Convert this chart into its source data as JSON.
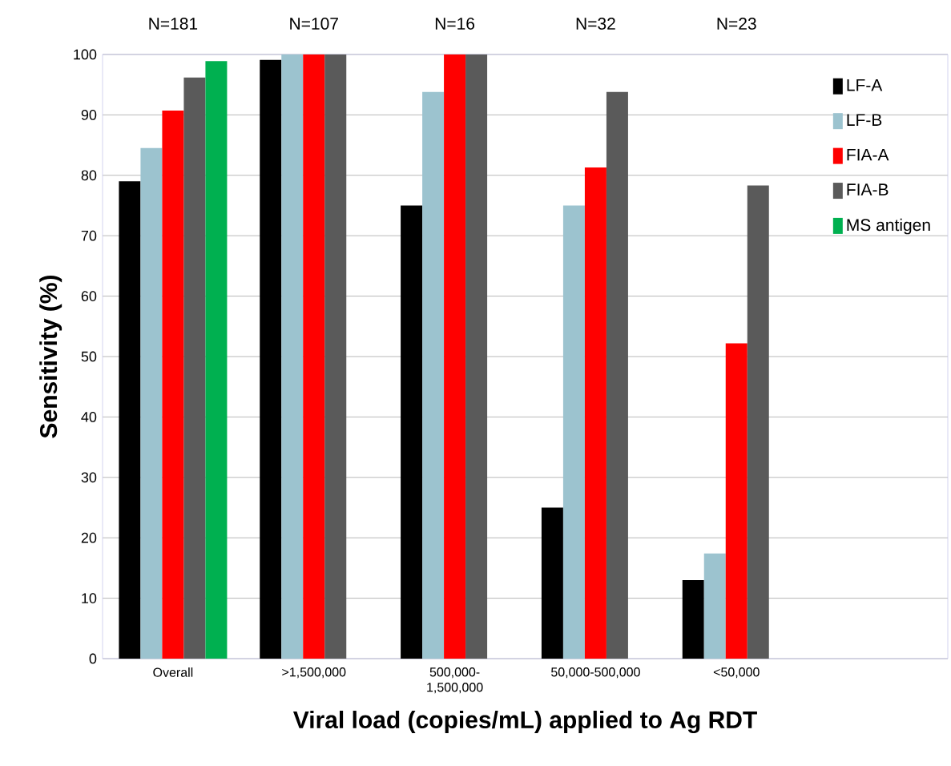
{
  "chart_data": {
    "type": "bar",
    "xlabel": "Viral load (copies/mL) applied to Ag RDT",
    "ylabel": "Sensitivity (%)",
    "categories": [
      "Overall",
      ">1,500,000",
      "500,000-1,500,000",
      "50,000-500,000",
      "<50,000",
      null
    ],
    "series": [
      {
        "name": "LF-A",
        "color": "#000000",
        "values": [
          79,
          99.1,
          75,
          25,
          13,
          null
        ]
      },
      {
        "name": "LF-B",
        "color": "#9cc3cf",
        "values": [
          84.5,
          100,
          93.8,
          75,
          17.4,
          null
        ]
      },
      {
        "name": "FIA-A",
        "color": "#ff0000",
        "values": [
          90.7,
          100,
          100,
          81.3,
          52.2,
          null
        ]
      },
      {
        "name": "FIA-B",
        "color": "#5a5a5a",
        "values": [
          96.2,
          100,
          100,
          93.8,
          78.3,
          null
        ]
      },
      {
        "name": "MS antigen",
        "color": "#00b050",
        "values": [
          98.9,
          null,
          null,
          null,
          null,
          null
        ]
      }
    ],
    "annotations": [
      "N=181",
      "N=107",
      "N=16",
      "N=32",
      "N=23"
    ],
    "ylim": [
      0,
      100
    ],
    "yticks": [
      0,
      10,
      20,
      30,
      40,
      50,
      60,
      70,
      80,
      90,
      100
    ],
    "grid": "y",
    "legend": "top right"
  }
}
